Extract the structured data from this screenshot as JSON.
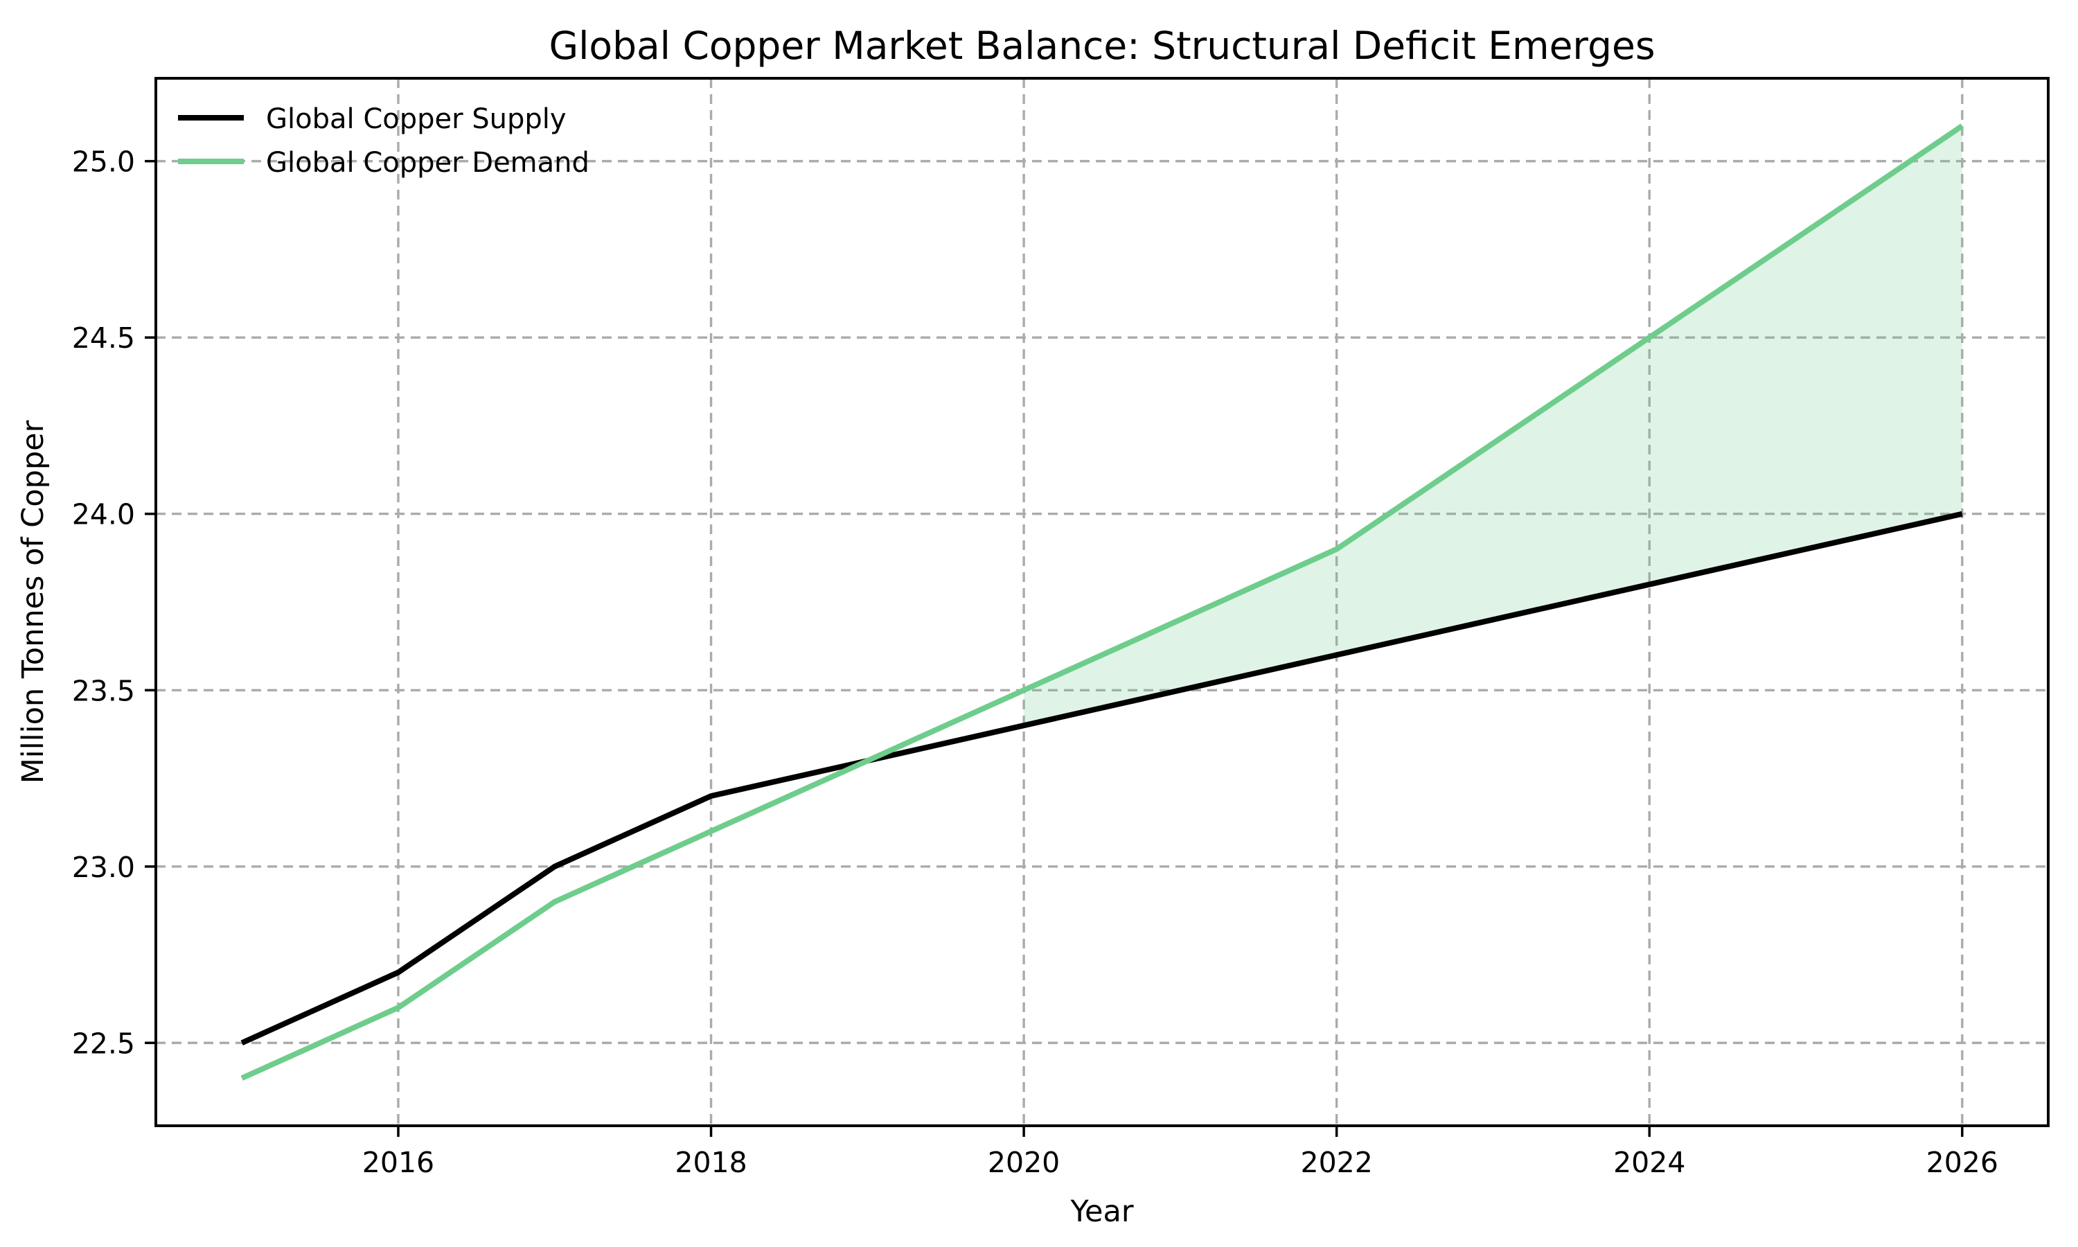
{
  "chart_data": {
    "type": "line",
    "title": "Global Copper Market Balance: Structural Deficit Emerges",
    "xlabel": "Year",
    "ylabel": "Million Tonnes of Copper",
    "x": [
      2015,
      2016,
      2017,
      2018,
      2019,
      2020,
      2021,
      2022,
      2023,
      2024,
      2025,
      2026
    ],
    "series": [
      {
        "key": "supply",
        "name": "Global Copper Supply",
        "color": "#000000",
        "values": [
          22.5,
          22.7,
          23.0,
          23.2,
          23.3,
          23.4,
          23.5,
          23.6,
          23.7,
          23.8,
          23.9,
          24.0
        ]
      },
      {
        "key": "demand",
        "name": "Global Copper Demand",
        "color": "#6ECD8C",
        "values": [
          22.4,
          22.6,
          22.9,
          23.1,
          23.3,
          23.5,
          23.7,
          23.9,
          24.2,
          24.5,
          24.8,
          25.1
        ]
      }
    ],
    "fill_between": {
      "upper_series": "Global Copper Demand",
      "lower_series": "Global Copper Supply",
      "where": "demand > supply",
      "x_start": 2020,
      "x_end": 2026,
      "color": "rgba(110, 205, 140, 0.22)"
    },
    "x_ticks": [
      "2016",
      "2018",
      "2020",
      "2022",
      "2024",
      "2026"
    ],
    "y_ticks": [
      "22.5",
      "23.0",
      "23.5",
      "24.0",
      "24.5",
      "25.0"
    ],
    "xlim": [
      2014.45,
      2026.55
    ],
    "ylim": [
      22.265,
      25.235
    ],
    "grid": true,
    "grid_color": "#ababab",
    "legend_position": "upper left",
    "legend_frame": false
  }
}
